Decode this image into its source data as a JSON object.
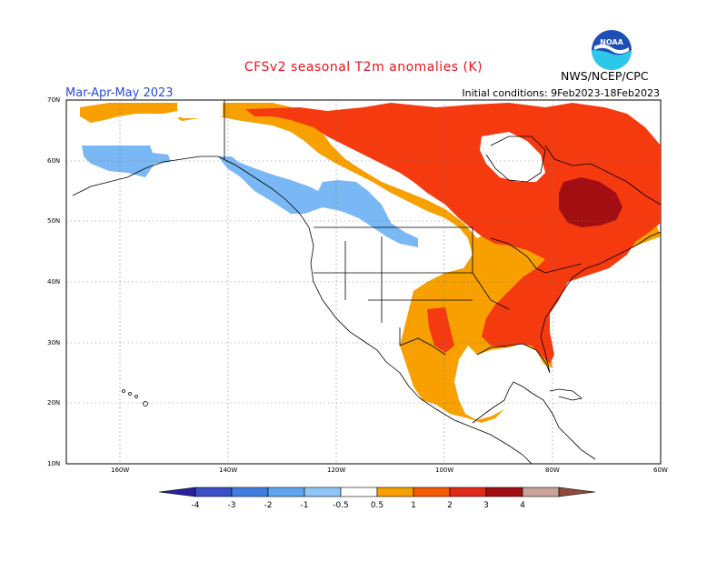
{
  "header": {
    "title": "CFSv2 seasonal T2m anomalies (K)",
    "agency": "NWS/NCEP/CPC",
    "period": "Mar-Apr-May 2023",
    "initial_conditions": "Initial conditions: 9Feb2023-18Feb2023"
  },
  "logo": {
    "text": "NOAA",
    "icon": "noaa-logo"
  },
  "axes": {
    "lat_labels": [
      "70N",
      "60N",
      "50N",
      "40N",
      "30N",
      "20N",
      "10N"
    ],
    "lon_labels": [
      "160W",
      "140W",
      "120W",
      "100W",
      "80W",
      "60W"
    ]
  },
  "legend": {
    "ticks": [
      "-4",
      "-3",
      "-2",
      "-1",
      "-0.5",
      "0.5",
      "1",
      "2",
      "3",
      "4"
    ],
    "colors": [
      "#2b1f9e",
      "#3a4fc7",
      "#3f7de0",
      "#5fa5ee",
      "#8fc6f7",
      "#ffffff",
      "#f7a000",
      "#f55a00",
      "#e22a1a",
      "#a30e12",
      "#c9a399",
      "#8b4a3a"
    ]
  },
  "anomaly_colors": {
    "cool_light": "#7ab8f5",
    "warm_0_5_1": "#f7a000",
    "warm_1_2": "#f53a10",
    "warm_2_3": "#a30e12"
  }
}
